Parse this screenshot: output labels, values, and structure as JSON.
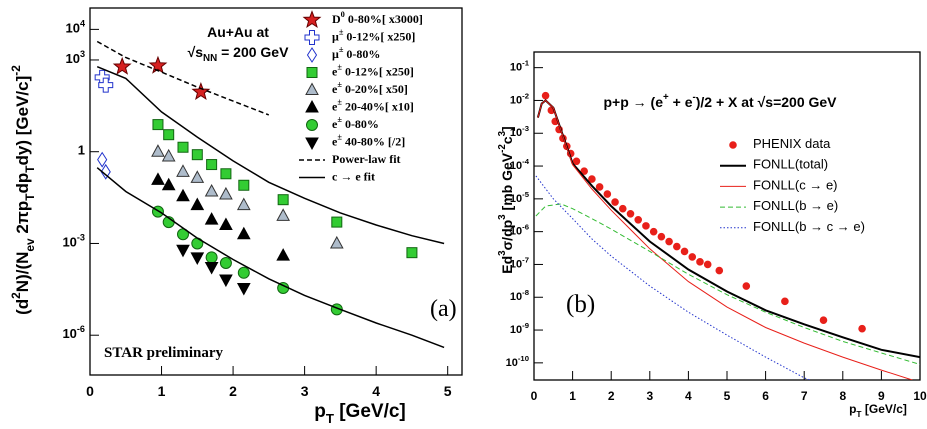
{
  "chart_data": [
    {
      "type": "scatter",
      "ylog": true,
      "grid": false,
      "legend": "upper right",
      "x_label": "p_{T}  [GeV/c]",
      "y_label": "(d^{2}N)/(N_{ev} 2πp_{T}dp_{T}dy)  [GeV/c]^{-2}",
      "annotations": [
        "Au+Au at",
        "√s_{NN} = 200 GeV",
        "STAR preliminary",
        "(a)"
      ],
      "xlim": [
        0,
        5.2
      ],
      "ylim": [
        5e-08,
        50000
      ],
      "xticks": [
        0,
        1,
        2,
        3,
        4,
        5
      ],
      "yticks": [
        {
          "value": 1e-06,
          "label": "10^{-6}"
        },
        {
          "value": 0.001,
          "label": "10^{-3}"
        },
        1,
        {
          "value": 1000,
          "label": "10^{3}"
        },
        {
          "value": 10000,
          "label": "10^{4}"
        }
      ],
      "series": [
        {
          "name": "D^{0} 0-80%[ x3000]",
          "marker": "star",
          "color": "#d62020",
          "edgecolor": "#600",
          "x": [
            0.45,
            0.95,
            1.55
          ],
          "values": [
            600,
            650,
            90
          ]
        },
        {
          "name": "μ^{±} 0-12%[ x250]",
          "marker": "cross",
          "color": "#ffffff",
          "edgecolor": "#2233cc",
          "x": [
            0.17,
            0.22
          ],
          "values": [
            270,
            150
          ]
        },
        {
          "name": "μ^{±} 0-80%",
          "marker": "diamond",
          "color": "#ffffff",
          "edgecolor": "#2233cc",
          "x": [
            0.17,
            0.22
          ],
          "values": [
            0.55,
            0.22
          ]
        },
        {
          "name": "e^{±} 0-12%[ x250]",
          "marker": "square",
          "color": "#33cc33",
          "edgecolor": "#116611",
          "x": [
            0.95,
            1.1,
            1.3,
            1.5,
            1.7,
            1.9,
            2.15,
            2.7,
            3.45,
            4.5
          ],
          "values": [
            7.7,
            3.6,
            1.4,
            0.8,
            0.38,
            0.19,
            0.08,
            0.027,
            0.005,
            0.0005
          ]
        },
        {
          "name": "e^{±} 0-20%[ x50]",
          "marker": "triangle",
          "color": "#aebccb",
          "edgecolor": "#333333",
          "x": [
            0.95,
            1.1,
            1.3,
            1.5,
            1.7,
            1.9,
            2.15,
            2.7,
            3.45
          ],
          "values": [
            1,
            0.7,
            0.22,
            0.14,
            0.05,
            0.04,
            0.018,
            0.008,
            0.001
          ]
        },
        {
          "name": "e^{±} 20-40%[ x10]",
          "marker": "triangle",
          "color": "#000000",
          "edgecolor": "#000000",
          "x": [
            0.95,
            1.1,
            1.3,
            1.5,
            1.7,
            1.9,
            2.15,
            2.7
          ],
          "values": [
            0.12,
            0.08,
            0.035,
            0.018,
            0.006,
            0.004,
            0.002,
            0.0004
          ]
        },
        {
          "name": "e^{±} 0-80%",
          "marker": "circle",
          "color": "#33cc33",
          "edgecolor": "#116611",
          "x": [
            0.95,
            1.1,
            1.3,
            1.5,
            1.7,
            1.9,
            2.15,
            2.7,
            3.45
          ],
          "values": [
            0.011,
            0.005,
            0.002,
            0.001,
            0.00035,
            0.00023,
            0.00011,
            3.5e-05,
            7e-06
          ]
        },
        {
          "name": "e^{±} 40-80% [/2]",
          "marker": "triangle-down",
          "color": "#000000",
          "edgecolor": "#000000",
          "x": [
            1.3,
            1.5,
            1.7,
            1.9,
            2.15
          ],
          "values": [
            0.00062,
            0.00035,
            0.00017,
            6.6e-05,
            3.5e-05
          ]
        },
        {
          "name": "Power-law fit",
          "line": "dashed",
          "color": "#000000",
          "x": [
            0.1,
            0.5,
            1,
            1.5,
            2,
            2.5
          ],
          "values": [
            4000,
            1200,
            400,
            130,
            45,
            16
          ]
        },
        {
          "name": "c → e fit",
          "line": "solid",
          "color": "#000000",
          "x": [
            0.1,
            0.5,
            1,
            1.5,
            2,
            2.5,
            3,
            3.5,
            4,
            4.5,
            4.95,
            null,
            0.1,
            0.5,
            1,
            1.5,
            2,
            2.5,
            3,
            3.5,
            4,
            4.5,
            4.95
          ],
          "values": [
            600,
            250,
            20,
            3,
            0.5,
            0.1,
            0.03,
            0.01,
            0.004,
            0.0018,
            0.001,
            null,
            0.3,
            0.05,
            0.01,
            0.0015,
            0.0003,
            7e-05,
            2e-05,
            7e-06,
            2.5e-06,
            1e-06,
            4e-07
          ]
        }
      ]
    },
    {
      "type": "scatter",
      "ylog": true,
      "grid": false,
      "legend": "upper right",
      "title": "p+p → (e^{+} + e^{-})/2  +  X  at √s=200  GeV",
      "x_label": "p_{T}  [GeV/c]",
      "y_label": "Ed^{3}σ/dp^{3}  [mb  GeV^{-2}c^{3}]",
      "annotations": [
        "(b)"
      ],
      "xlim": [
        0,
        10
      ],
      "ylim": [
        3e-11,
        0.3
      ],
      "xticks": [
        0,
        1,
        2,
        3,
        4,
        5,
        6,
        7,
        8,
        9,
        10
      ],
      "yticks": [
        {
          "value": 1e-10,
          "label": "10^{-10}"
        },
        {
          "value": 1e-09,
          "label": "10^{-9}"
        },
        {
          "value": 1e-08,
          "label": "10^{-8}"
        },
        {
          "value": 1e-07,
          "label": "10^{-7}"
        },
        {
          "value": 1e-06,
          "label": "10^{-6}"
        },
        {
          "value": 1e-05,
          "label": "10^{-5}"
        },
        {
          "value": 0.0001,
          "label": "10^{-4}"
        },
        {
          "value": 0.001,
          "label": "10^{-3}"
        },
        {
          "value": 0.01,
          "label": "10^{-2}"
        },
        {
          "value": 0.1,
          "label": "10^{-1}"
        }
      ],
      "series": [
        {
          "name": "PHENIX data",
          "marker": "dot",
          "color": "#e8201a",
          "edgecolor": "#e8201a",
          "x": [
            0.3,
            0.45,
            0.55,
            0.65,
            0.75,
            0.85,
            0.95,
            1.1,
            1.3,
            1.5,
            1.7,
            1.9,
            2.1,
            2.3,
            2.5,
            2.7,
            2.9,
            3.1,
            3.3,
            3.5,
            3.7,
            3.9,
            4.1,
            4.3,
            4.5,
            4.8,
            5.5,
            6.5,
            7.5,
            8.5
          ],
          "values": [
            0.014,
            0.005,
            0.0023,
            0.0013,
            0.0007,
            0.0004,
            0.00024,
            0.00014,
            7e-05,
            4e-05,
            2.3e-05,
            1.4e-05,
            8e-06,
            5e-06,
            3.5e-06,
            2.3e-06,
            1.5e-06,
            1e-06,
            7e-07,
            5e-07,
            3.5e-07,
            2.5e-07,
            1.7e-07,
            1.2e-07,
            1e-07,
            6.5e-08,
            2.2e-08,
            7.5e-09,
            2e-09,
            1.1e-09
          ]
        },
        {
          "name": "FONLL(total)",
          "line": "solid",
          "width": 2,
          "color": "#000000",
          "x": [
            0.1,
            0.2,
            0.3,
            0.5,
            1,
            1.5,
            2,
            3,
            4,
            5,
            6,
            7,
            8,
            9,
            10
          ],
          "values": [
            0.003,
            0.008,
            0.01,
            0.006,
            0.00012,
            2.5e-05,
            6e-06,
            5e-07,
            7e-08,
            1.5e-08,
            4e-09,
            1.5e-09,
            6e-10,
            2.5e-10,
            1.5e-10
          ]
        },
        {
          "name": "FONLL(c → e)",
          "line": "solid",
          "width": 1,
          "color": "#e8201a",
          "x": [
            0.1,
            0.2,
            0.3,
            0.5,
            1,
            1.5,
            2,
            3,
            4,
            5,
            6,
            7,
            8,
            9,
            9.8
          ],
          "values": [
            0.003,
            0.008,
            0.01,
            0.006,
            0.00011,
            2e-05,
            4.5e-06,
            3e-07,
            3e-08,
            5e-09,
            1.2e-09,
            4e-10,
            1.5e-10,
            6e-11,
            3e-11
          ]
        },
        {
          "name": "FONLL(b → e)",
          "line": "dashed",
          "width": 1,
          "color": "#33bb33",
          "x": [
            0.05,
            0.3,
            0.7,
            1,
            1.5,
            2,
            3,
            4,
            5,
            6,
            7,
            8,
            9,
            10
          ],
          "values": [
            3e-06,
            6e-06,
            7e-06,
            5e-06,
            2.5e-06,
            1.2e-06,
            2.5e-07,
            5e-08,
            1.2e-08,
            3.5e-09,
            1.2e-09,
            4.5e-10,
            2e-10,
            9e-11
          ]
        },
        {
          "name": "FONLL(b → c → e)",
          "line": "dotted",
          "width": 1,
          "color": "#2233cc",
          "x": [
            0.05,
            0.5,
            1,
            1.5,
            2,
            3,
            4,
            5,
            6,
            7,
            7.3
          ],
          "values": [
            5e-05,
            1e-05,
            2.5e-06,
            6e-07,
            1.8e-07,
            2.2e-08,
            3.5e-09,
            7e-10,
            1.5e-10,
            3.5e-11,
            2.5e-11
          ]
        }
      ]
    }
  ]
}
